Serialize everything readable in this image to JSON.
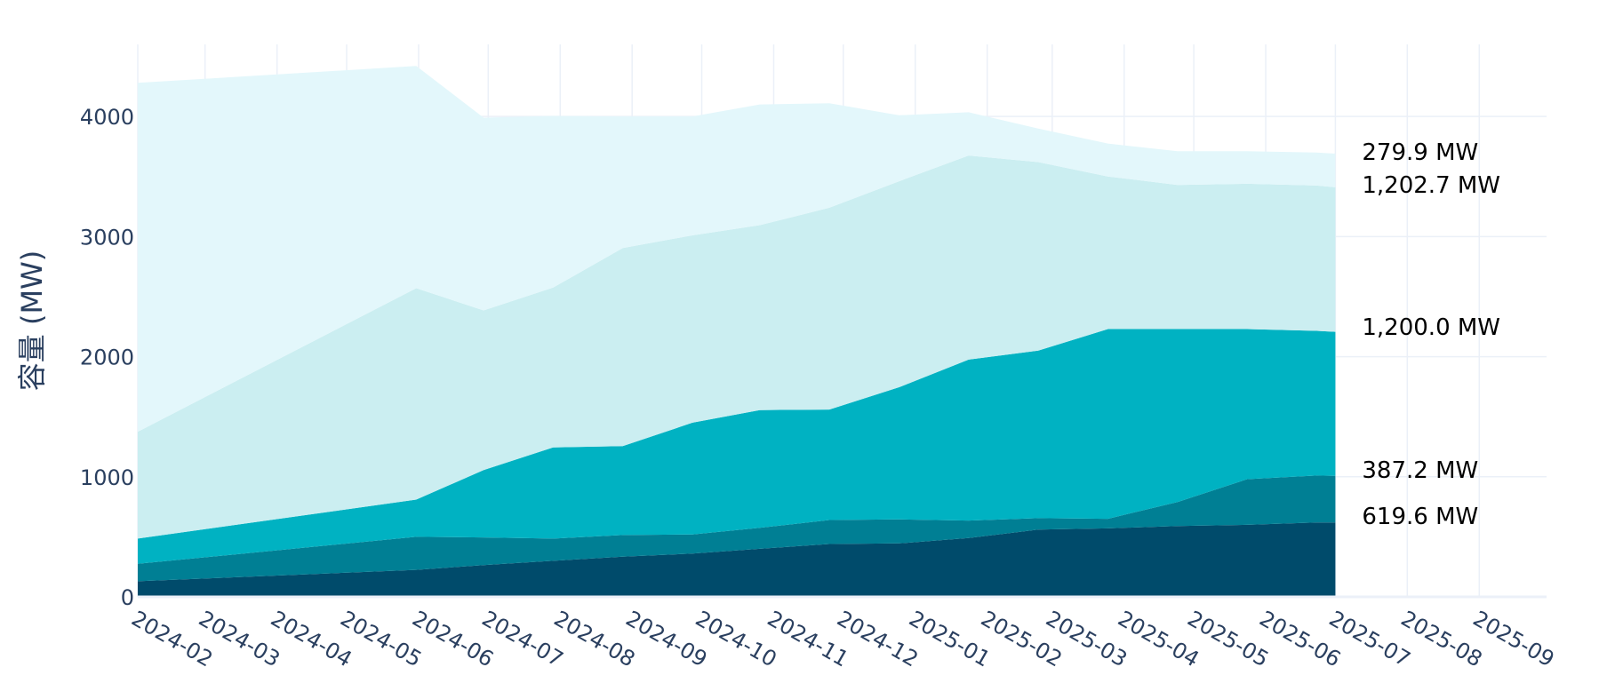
{
  "chart_data": {
    "type": "area",
    "stacked": true,
    "title": "",
    "xlabel": "",
    "ylabel": "容量 (MW)",
    "ylim": [
      0,
      4600
    ],
    "xlim": [
      "2024-02-01",
      "2025-09-30"
    ],
    "grid": true,
    "yticks": [
      0,
      1000,
      2000,
      3000,
      4000
    ],
    "ytick_labels": [
      "0",
      "1000",
      "2000",
      "3000",
      "4000"
    ],
    "xtick_labels": [
      "2024-02",
      "2024-03",
      "2024-04",
      "2024-05",
      "2024-06",
      "2024-07",
      "2024-08",
      "2024-09",
      "2024-10",
      "2024-11",
      "2024-12",
      "2025-01",
      "2025-02",
      "2025-03",
      "2025-04",
      "2025-05",
      "2025-06",
      "2025-07",
      "2025-08",
      "2025-09"
    ],
    "x": [
      "2024-02-01",
      "2024-05-31",
      "2024-06-29",
      "2024-07-29",
      "2024-08-28",
      "2024-09-27",
      "2024-10-26",
      "2024-11-25",
      "2024-12-25",
      "2025-01-24",
      "2025-02-23",
      "2025-03-25",
      "2025-04-24",
      "2025-05-24",
      "2025-06-23",
      "2025-07-01"
    ],
    "series": [
      {
        "color": "#004b6b",
        "values": [
          130,
          225,
          265,
          300,
          335,
          360,
          400,
          440,
          445,
          490,
          560,
          570,
          590,
          600,
          620,
          620
        ]
      },
      {
        "color": "#007f94",
        "values": [
          145,
          275,
          230,
          185,
          180,
          160,
          175,
          200,
          200,
          145,
          95,
          80,
          200,
          380,
          390,
          387
        ]
      },
      {
        "color": "#00b2c2",
        "values": [
          210,
          310,
          560,
          760,
          740,
          930,
          980,
          920,
          1100,
          1340,
          1395,
          1580,
          1440,
          1250,
          1205,
          1200
        ]
      },
      {
        "color": "#cbeef1",
        "values": [
          890,
          1760,
          1330,
          1330,
          1650,
          1560,
          1540,
          1680,
          1715,
          1700,
          1570,
          1270,
          1200,
          1210,
          1210,
          1203
        ]
      },
      {
        "color": "#e3f7fb",
        "values": [
          2905,
          1850,
          1605,
          1430,
          1095,
          990,
          1005,
          870,
          550,
          360,
          280,
          275,
          280,
          270,
          275,
          280
        ]
      }
    ],
    "end_labels": [
      "279.9 MW",
      "1,202.7 MW",
      "1,200.0 MW",
      "387.2 MW",
      "619.6 MW"
    ]
  }
}
